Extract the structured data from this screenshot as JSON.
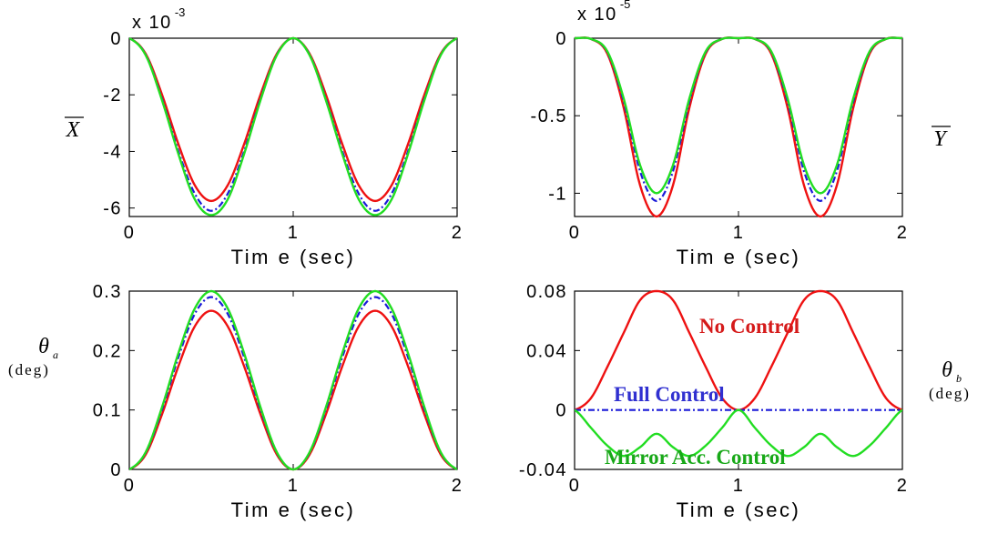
{
  "figure": {
    "panels": [
      {
        "id": "top-left",
        "ylabel": "X",
        "ylabel_overbar": true,
        "ylabel_subscript": "",
        "ylabel_unit": "",
        "xlabel": "Tim e (sec)",
        "multiplier_base": "x 10",
        "multiplier_exp": "-3"
      },
      {
        "id": "top-right",
        "ylabel": "Y",
        "ylabel_overbar": true,
        "ylabel_subscript": "",
        "ylabel_unit": "",
        "xlabel": "Tim e (sec)",
        "multiplier_base": "x 10",
        "multiplier_exp": "-5"
      },
      {
        "id": "bottom-left",
        "ylabel": "θ",
        "ylabel_overbar": false,
        "ylabel_subscript": "a",
        "ylabel_unit": "(deg)",
        "xlabel": "Tim e (sec)",
        "multiplier_base": "",
        "multiplier_exp": ""
      },
      {
        "id": "bottom-right",
        "ylabel": "θ",
        "ylabel_overbar": false,
        "ylabel_subscript": "b",
        "ylabel_unit": "(deg)",
        "xlabel": "Tim e (sec)",
        "multiplier_base": "",
        "multiplier_exp": ""
      }
    ],
    "annotations": [
      {
        "text": "No Control",
        "color": "#d51a1a"
      },
      {
        "text": "Full Control",
        "color": "#3030d0"
      },
      {
        "text": "Mirror Acc. Control",
        "color": "#18a818"
      }
    ]
  },
  "chart_data": [
    {
      "type": "line",
      "xlabel": "Tim e (sec)",
      "ylabel": "X",
      "multiplier": "x 10^-3",
      "xlim": [
        0,
        2
      ],
      "ylim": [
        -6.3,
        0
      ],
      "xticks": [
        0,
        1,
        2
      ],
      "yticks": [
        0,
        -2,
        -4,
        -6
      ],
      "x": [
        0,
        0.1,
        0.2,
        0.3,
        0.4,
        0.5,
        0.6,
        0.7,
        0.8,
        0.9,
        1.0,
        1.1,
        1.2,
        1.3,
        1.4,
        1.5,
        1.6,
        1.7,
        1.8,
        1.9,
        2.0
      ],
      "series": [
        {
          "color": "#ee1111",
          "dash": "solid",
          "values": [
            0,
            -0.55,
            -2.0,
            -3.75,
            -5.2,
            -5.75,
            -5.2,
            -3.75,
            -2.0,
            -0.55,
            0,
            -0.55,
            -2.0,
            -3.75,
            -5.2,
            -5.75,
            -5.2,
            -3.75,
            -2.0,
            -0.55,
            0
          ]
        },
        {
          "color": "#1a1ad8",
          "dash": "dashdot",
          "values": [
            0,
            -0.58,
            -2.15,
            -4.0,
            -5.5,
            -6.1,
            -5.5,
            -4.0,
            -2.15,
            -0.58,
            0,
            -0.58,
            -2.15,
            -4.0,
            -5.5,
            -6.1,
            -5.5,
            -4.0,
            -2.15,
            -0.58,
            0
          ]
        },
        {
          "color": "#22dd22",
          "dash": "solid",
          "values": [
            0,
            -0.6,
            -2.2,
            -4.1,
            -5.7,
            -6.25,
            -5.7,
            -4.1,
            -2.2,
            -0.6,
            0,
            -0.6,
            -2.2,
            -4.1,
            -5.7,
            -6.25,
            -5.7,
            -4.1,
            -2.2,
            -0.6,
            0
          ]
        }
      ]
    },
    {
      "type": "line",
      "xlabel": "Tim e (sec)",
      "ylabel": "Y",
      "multiplier": "x 10^-5",
      "xlim": [
        0,
        2
      ],
      "ylim": [
        -1.15,
        0
      ],
      "xticks": [
        0,
        1,
        2
      ],
      "yticks": [
        0,
        -0.5,
        -1
      ],
      "x": [
        0,
        0.1,
        0.2,
        0.3,
        0.4,
        0.5,
        0.6,
        0.7,
        0.8,
        0.9,
        1.0,
        1.1,
        1.2,
        1.3,
        1.4,
        1.5,
        1.6,
        1.7,
        1.8,
        1.9,
        2.0
      ],
      "series": [
        {
          "color": "#ee1111",
          "dash": "solid",
          "values": [
            0,
            -0.005,
            -0.1,
            -0.45,
            -0.95,
            -1.15,
            -0.95,
            -0.45,
            -0.1,
            -0.005,
            0,
            -0.005,
            -0.1,
            -0.45,
            -0.95,
            -1.15,
            -0.95,
            -0.45,
            -0.1,
            -0.005,
            0
          ]
        },
        {
          "color": "#1a1ad8",
          "dash": "dashdot",
          "values": [
            0,
            -0.005,
            -0.09,
            -0.41,
            -0.86,
            -1.05,
            -0.86,
            -0.41,
            -0.09,
            -0.005,
            0,
            -0.005,
            -0.09,
            -0.41,
            -0.86,
            -1.05,
            -0.86,
            -0.41,
            -0.09,
            -0.005,
            0
          ]
        },
        {
          "color": "#22dd22",
          "dash": "solid",
          "values": [
            0,
            -0.005,
            -0.085,
            -0.39,
            -0.82,
            -1.0,
            -0.82,
            -0.39,
            -0.085,
            -0.005,
            0,
            -0.005,
            -0.085,
            -0.39,
            -0.82,
            -1.0,
            -0.82,
            -0.39,
            -0.085,
            -0.005,
            0
          ]
        }
      ]
    },
    {
      "type": "line",
      "xlabel": "Tim e (sec)",
      "ylabel": "θa (deg)",
      "xlim": [
        0,
        2
      ],
      "ylim": [
        0,
        0.3
      ],
      "xticks": [
        0,
        1,
        2
      ],
      "yticks": [
        0,
        0.1,
        0.2,
        0.3
      ],
      "x": [
        0,
        0.1,
        0.2,
        0.3,
        0.4,
        0.5,
        0.6,
        0.7,
        0.8,
        0.9,
        1.0,
        1.1,
        1.2,
        1.3,
        1.4,
        1.5,
        1.6,
        1.7,
        1.8,
        1.9,
        2.0
      ],
      "series": [
        {
          "color": "#ee1111",
          "dash": "solid",
          "values": [
            0,
            0.025,
            0.093,
            0.174,
            0.241,
            0.267,
            0.241,
            0.174,
            0.093,
            0.025,
            0,
            0.025,
            0.093,
            0.174,
            0.241,
            0.267,
            0.241,
            0.174,
            0.093,
            0.025,
            0
          ]
        },
        {
          "color": "#1a1ad8",
          "dash": "dashdot",
          "values": [
            0,
            0.028,
            0.101,
            0.189,
            0.262,
            0.29,
            0.262,
            0.189,
            0.101,
            0.028,
            0,
            0.028,
            0.101,
            0.189,
            0.262,
            0.29,
            0.262,
            0.189,
            0.101,
            0.028,
            0
          ]
        },
        {
          "color": "#22dd22",
          "dash": "solid",
          "values": [
            0,
            0.029,
            0.105,
            0.196,
            0.271,
            0.3,
            0.271,
            0.196,
            0.105,
            0.029,
            0,
            0.029,
            0.105,
            0.196,
            0.271,
            0.3,
            0.271,
            0.196,
            0.105,
            0.029,
            0
          ]
        }
      ]
    },
    {
      "type": "line",
      "xlabel": "Tim e (sec)",
      "ylabel": "θb (deg)",
      "xlim": [
        0,
        2
      ],
      "ylim": [
        -0.04,
        0.08
      ],
      "xticks": [
        0,
        1,
        2
      ],
      "yticks": [
        -0.04,
        0,
        0.04,
        0.08
      ],
      "x": [
        0,
        0.1,
        0.2,
        0.3,
        0.4,
        0.5,
        0.6,
        0.7,
        0.8,
        0.9,
        1.0,
        1.1,
        1.2,
        1.3,
        1.4,
        1.5,
        1.6,
        1.7,
        1.8,
        1.9,
        2.0
      ],
      "series": [
        {
          "color": "#ee1111",
          "dash": "solid",
          "label_ref": "No Control",
          "values": [
            0,
            0.008,
            0.029,
            0.052,
            0.074,
            0.08,
            0.074,
            0.052,
            0.029,
            0.008,
            0,
            0.008,
            0.029,
            0.052,
            0.074,
            0.08,
            0.074,
            0.052,
            0.029,
            0.008,
            0
          ]
        },
        {
          "color": "#1a1ad8",
          "dash": "dashdot",
          "label_ref": "Full Control",
          "values": [
            0,
            0,
            0,
            0,
            0,
            0,
            0,
            0,
            0,
            0,
            0,
            0,
            0,
            0,
            0,
            0,
            0,
            0,
            0,
            0,
            0
          ]
        },
        {
          "color": "#22dd22",
          "dash": "solid",
          "label_ref": "Mirror Acc. Control",
          "values": [
            0,
            -0.012,
            -0.024,
            -0.031,
            -0.025,
            -0.016,
            -0.025,
            -0.031,
            -0.024,
            -0.012,
            0,
            -0.012,
            -0.024,
            -0.031,
            -0.025,
            -0.016,
            -0.025,
            -0.031,
            -0.024,
            -0.012,
            0
          ]
        }
      ]
    }
  ]
}
